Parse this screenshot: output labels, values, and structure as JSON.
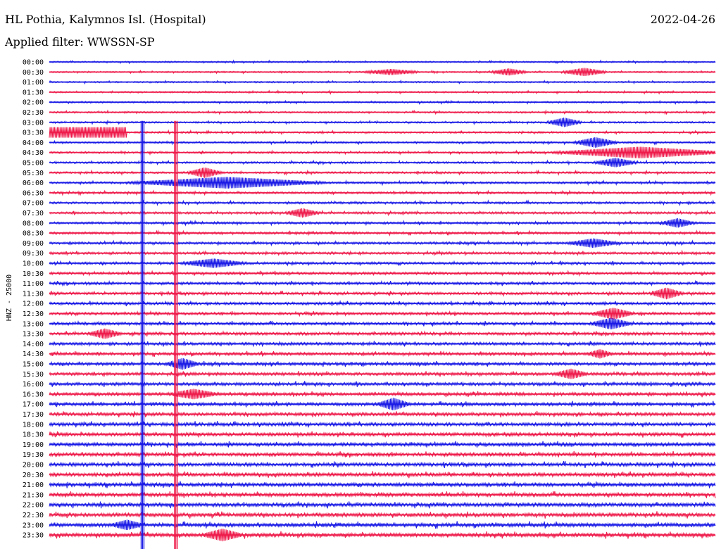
{
  "header": {
    "station": "HL Pothia, Kalymnos Isl. (Hospital)",
    "date": "2022-04-26",
    "filter": "Applied filter: WWSSN-SP"
  },
  "colors": {
    "blue": "#1a1ae6",
    "red": "#ee1a4a"
  },
  "chart_data": {
    "type": "line",
    "ylabel": "HNZ - 25000",
    "rows": [
      "00:00",
      "00:30",
      "01:00",
      "01:30",
      "02:00",
      "02:30",
      "03:00",
      "03:30",
      "04:00",
      "04:30",
      "05:00",
      "05:30",
      "06:00",
      "06:30",
      "07:00",
      "07:30",
      "08:00",
      "08:30",
      "09:00",
      "09:30",
      "10:00",
      "10:30",
      "11:00",
      "11:30",
      "12:00",
      "12:30",
      "13:00",
      "13:30",
      "14:00",
      "14:30",
      "15:00",
      "15:30",
      "16:00",
      "16:30",
      "17:00",
      "17:30",
      "18:00",
      "18:30",
      "19:00",
      "19:30",
      "20:00",
      "20:30",
      "21:00",
      "21:30",
      "22:00",
      "22:30",
      "23:00",
      "23:30"
    ],
    "row_minutes": 30,
    "x_minutes": [
      0,
      30
    ],
    "saturated_row": "03:30",
    "events": [
      {
        "row": "00:30",
        "minute": 15.4,
        "amp": 0.4,
        "dur": 1.2
      },
      {
        "row": "00:30",
        "minute": 20.7,
        "amp": 0.5,
        "dur": 0.8
      },
      {
        "row": "00:30",
        "minute": 24.1,
        "amp": 0.6,
        "dur": 1.0
      },
      {
        "row": "03:00",
        "minute": 23.2,
        "amp": 0.7,
        "dur": 0.8
      },
      {
        "row": "04:00",
        "minute": 24.6,
        "amp": 0.8,
        "dur": 1.0
      },
      {
        "row": "04:30",
        "minute": 26.6,
        "amp": 0.9,
        "dur": 4.0
      },
      {
        "row": "05:00",
        "minute": 25.5,
        "amp": 0.7,
        "dur": 1.0
      },
      {
        "row": "05:30",
        "minute": 7.0,
        "amp": 0.8,
        "dur": 0.8
      },
      {
        "row": "06:00",
        "minute": 8.0,
        "amp": 0.9,
        "dur": 4.5
      },
      {
        "row": "07:30",
        "minute": 11.4,
        "amp": 0.7,
        "dur": 0.8
      },
      {
        "row": "08:00",
        "minute": 28.3,
        "amp": 0.7,
        "dur": 0.8
      },
      {
        "row": "09:00",
        "minute": 24.5,
        "amp": 0.7,
        "dur": 1.2
      },
      {
        "row": "10:00",
        "minute": 7.4,
        "amp": 0.7,
        "dur": 1.5
      },
      {
        "row": "11:30",
        "minute": 27.8,
        "amp": 0.9,
        "dur": 0.8
      },
      {
        "row": "12:30",
        "minute": 25.4,
        "amp": 0.9,
        "dur": 1.0
      },
      {
        "row": "13:00",
        "minute": 25.3,
        "amp": 0.9,
        "dur": 1.0
      },
      {
        "row": "13:30",
        "minute": 2.5,
        "amp": 0.8,
        "dur": 0.8
      },
      {
        "row": "14:30",
        "minute": 24.8,
        "amp": 0.7,
        "dur": 0.6
      },
      {
        "row": "15:00",
        "minute": 6.0,
        "amp": 0.9,
        "dur": 0.8
      },
      {
        "row": "15:30",
        "minute": 23.5,
        "amp": 0.8,
        "dur": 0.8
      },
      {
        "row": "16:30",
        "minute": 6.5,
        "amp": 0.8,
        "dur": 1.2
      },
      {
        "row": "17:00",
        "minute": 15.5,
        "amp": 1.0,
        "dur": 0.8
      },
      {
        "row": "23:00",
        "minute": 3.5,
        "amp": 0.8,
        "dur": 0.8
      },
      {
        "row": "23:30",
        "minute": 7.8,
        "amp": 1.0,
        "dur": 1.0
      }
    ],
    "vertical_spikes": [
      {
        "minute": 4.2,
        "color": "blue",
        "from": "03:00",
        "to": "23:30"
      },
      {
        "minute": 5.7,
        "color": "red",
        "from": "03:00",
        "to": "23:30"
      }
    ]
  }
}
